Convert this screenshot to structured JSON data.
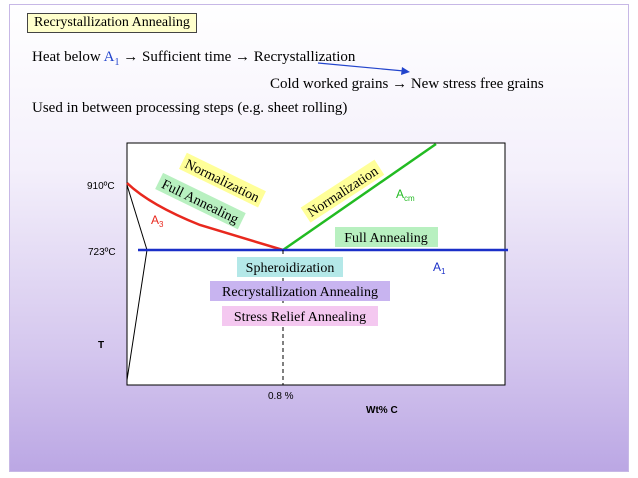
{
  "title": "Recrystallization Annealing",
  "line1": {
    "prefix": "Heat below ",
    "a1": "A",
    "a1_sub": "1",
    "arrow1": " → ",
    "mid": "Sufficient time",
    "arrow2": " → ",
    "end": "Recrystallization"
  },
  "line2": {
    "left": "Cold worked grains",
    "arrow": " → ",
    "right": "New stress free grains"
  },
  "line3": "Used in between processing steps (e.g. sheet rolling)",
  "diagram": {
    "temp_910": "910ºC",
    "temp_723": "723ºC",
    "y_axis": "T",
    "x_axis": "Wt% C",
    "composition": "0.8 %",
    "a3": "A",
    "a3_sub": "3",
    "acm": "A",
    "acm_sub": "cm",
    "a1": "A",
    "a1_sub": "1",
    "labels": {
      "normalization_left": "Normalization",
      "full_annealing_left": "Full Annealing",
      "normalization_right": "Normalization",
      "full_annealing_right": "Full Annealing",
      "spheroidization": "Spheroidization",
      "recrystallization": "Recrystallization Annealing",
      "stress_relief": "Stress Relief Annealing"
    },
    "colors": {
      "a3": "#e8281e",
      "acm": "#22bb22",
      "a1": "#1a2fc8",
      "yellow": "#ffff99",
      "green": "#b8f0c0",
      "cyan": "#b4e8e8",
      "lavender": "#c8b4f0",
      "pink": "#f4c8f0"
    }
  }
}
